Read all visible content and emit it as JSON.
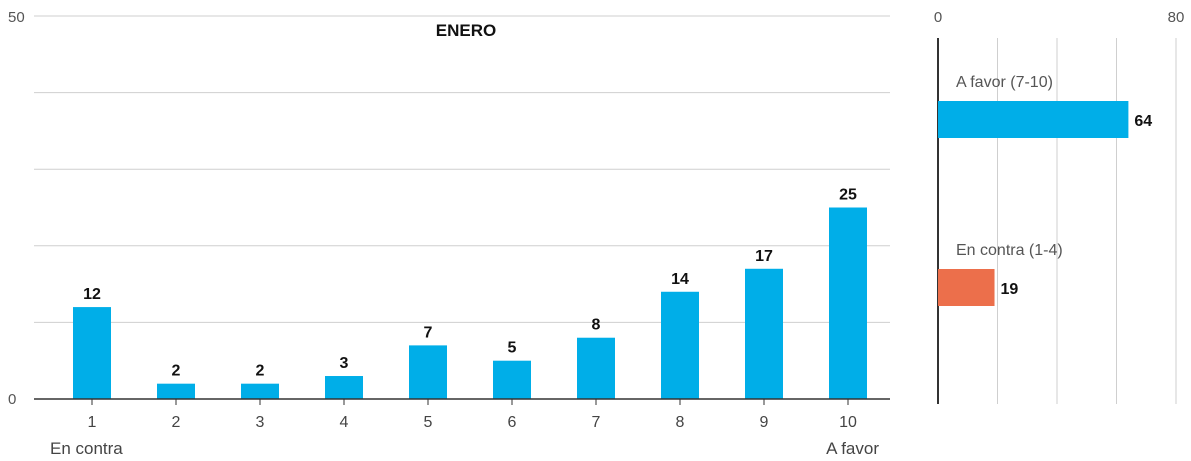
{
  "chart_data": [
    {
      "type": "bar",
      "title": "ENERO",
      "categories": [
        "1",
        "2",
        "3",
        "4",
        "5",
        "6",
        "7",
        "8",
        "9",
        "10"
      ],
      "values": [
        12,
        2,
        2,
        3,
        7,
        5,
        8,
        14,
        17,
        25
      ],
      "ylim": [
        0,
        50
      ],
      "y_tick_labels": [
        "0",
        "50"
      ],
      "end_labels": {
        "left": "En contra",
        "right": "A favor"
      },
      "grid": true,
      "color": "#00aee8"
    },
    {
      "type": "bar",
      "orientation": "horizontal",
      "xlim": [
        0,
        80
      ],
      "x_tick_labels": [
        "0",
        "80"
      ],
      "grid": true,
      "series": [
        {
          "label": "A favor (7-10)",
          "value": 64,
          "color": "#00aee8"
        },
        {
          "label": "En contra (1-4)",
          "value": 19,
          "color": "#ec6f4b"
        }
      ]
    }
  ]
}
